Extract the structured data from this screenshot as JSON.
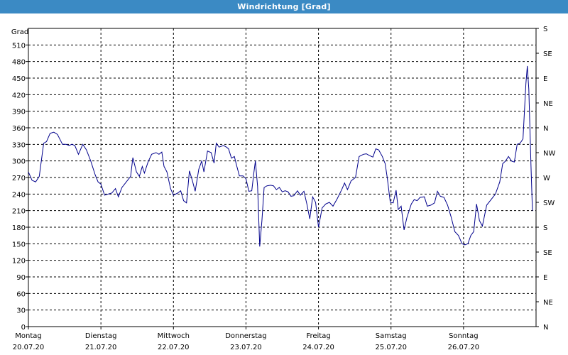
{
  "window": {
    "title": "Windrichtung [Grad]"
  },
  "colors": {
    "titlebar": "#3b8ac4",
    "line": "#00008b",
    "grid": "#000000"
  },
  "chart_data": {
    "type": "line",
    "title": "Windrichtung [Grad]",
    "ylabel": "Grad",
    "ylim": [
      0,
      540
    ],
    "xlim": [
      0,
      7
    ],
    "grid": true,
    "yticks_left": [
      0,
      30,
      60,
      90,
      120,
      150,
      180,
      210,
      240,
      270,
      300,
      330,
      360,
      390,
      420,
      450,
      480,
      510
    ],
    "yticks_right": [
      {
        "value": 0,
        "label": "N"
      },
      {
        "value": 45,
        "label": "NE"
      },
      {
        "value": 90,
        "label": "E"
      },
      {
        "value": 135,
        "label": "SE"
      },
      {
        "value": 180,
        "label": "S"
      },
      {
        "value": 225,
        "label": "SW"
      },
      {
        "value": 270,
        "label": "W"
      },
      {
        "value": 315,
        "label": "NW"
      },
      {
        "value": 360,
        "label": "N"
      },
      {
        "value": 405,
        "label": "NE"
      },
      {
        "value": 450,
        "label": "E"
      },
      {
        "value": 495,
        "label": "SE"
      },
      {
        "value": 540,
        "label": "S"
      }
    ],
    "xticks": [
      {
        "day": "Montag",
        "date": "20.07.20"
      },
      {
        "day": "Dienstag",
        "date": "21.07.20"
      },
      {
        "day": "Mittwoch",
        "date": "22.07.20"
      },
      {
        "day": "Donnerstag",
        "date": "23.07.20"
      },
      {
        "day": "Freitag",
        "date": "24.07.20"
      },
      {
        "day": "Samstag",
        "date": "25.07.20"
      },
      {
        "day": "Sonntag",
        "date": "26.07.20"
      }
    ],
    "series": [
      {
        "color": "#00008b",
        "points": [
          [
            0.0,
            280
          ],
          [
            0.05,
            265
          ],
          [
            0.1,
            262
          ],
          [
            0.15,
            272
          ],
          [
            0.21,
            332
          ],
          [
            0.25,
            335
          ],
          [
            0.3,
            350
          ],
          [
            0.35,
            352
          ],
          [
            0.4,
            348
          ],
          [
            0.47,
            330
          ],
          [
            0.52,
            330
          ],
          [
            0.56,
            328
          ],
          [
            0.6,
            330
          ],
          [
            0.64,
            328
          ],
          [
            0.69,
            312
          ],
          [
            0.75,
            330
          ],
          [
            0.8,
            320
          ],
          [
            0.86,
            300
          ],
          [
            0.92,
            275
          ],
          [
            0.96,
            262
          ],
          [
            1.0,
            258
          ],
          [
            1.05,
            238
          ],
          [
            1.1,
            240
          ],
          [
            1.15,
            242
          ],
          [
            1.2,
            250
          ],
          [
            1.24,
            235
          ],
          [
            1.29,
            252
          ],
          [
            1.35,
            262
          ],
          [
            1.41,
            272
          ],
          [
            1.44,
            306
          ],
          [
            1.49,
            280
          ],
          [
            1.53,
            272
          ],
          [
            1.57,
            290
          ],
          [
            1.6,
            278
          ],
          [
            1.65,
            298
          ],
          [
            1.7,
            312
          ],
          [
            1.76,
            315
          ],
          [
            1.8,
            312
          ],
          [
            1.84,
            316
          ],
          [
            1.87,
            290
          ],
          [
            1.91,
            280
          ],
          [
            1.96,
            250
          ],
          [
            2.0,
            238
          ],
          [
            2.06,
            242
          ],
          [
            2.1,
            246
          ],
          [
            2.14,
            228
          ],
          [
            2.18,
            224
          ],
          [
            2.22,
            282
          ],
          [
            2.26,
            265
          ],
          [
            2.3,
            245
          ],
          [
            2.35,
            285
          ],
          [
            2.39,
            300
          ],
          [
            2.42,
            280
          ],
          [
            2.47,
            318
          ],
          [
            2.52,
            315
          ],
          [
            2.56,
            296
          ],
          [
            2.59,
            332
          ],
          [
            2.63,
            325
          ],
          [
            2.69,
            328
          ],
          [
            2.73,
            325
          ],
          [
            2.76,
            322
          ],
          [
            2.8,
            305
          ],
          [
            2.84,
            308
          ],
          [
            2.87,
            292
          ],
          [
            2.91,
            273
          ],
          [
            2.96,
            273
          ],
          [
            3.0,
            268
          ],
          [
            3.04,
            245
          ],
          [
            3.08,
            246
          ],
          [
            3.11,
            280
          ],
          [
            3.13,
            300
          ],
          [
            3.16,
            254
          ],
          [
            3.19,
            145
          ],
          [
            3.22,
            192
          ],
          [
            3.25,
            252
          ],
          [
            3.29,
            255
          ],
          [
            3.34,
            256
          ],
          [
            3.38,
            255
          ],
          [
            3.42,
            248
          ],
          [
            3.46,
            252
          ],
          [
            3.5,
            244
          ],
          [
            3.54,
            246
          ],
          [
            3.58,
            244
          ],
          [
            3.62,
            236
          ],
          [
            3.66,
            237
          ],
          [
            3.71,
            246
          ],
          [
            3.75,
            238
          ],
          [
            3.8,
            245
          ],
          [
            3.84,
            222
          ],
          [
            3.88,
            195
          ],
          [
            3.92,
            235
          ],
          [
            3.96,
            225
          ],
          [
            4.0,
            180
          ],
          [
            4.05,
            215
          ],
          [
            4.1,
            222
          ],
          [
            4.15,
            225
          ],
          [
            4.2,
            218
          ],
          [
            4.26,
            232
          ],
          [
            4.32,
            248
          ],
          [
            4.36,
            260
          ],
          [
            4.4,
            248
          ],
          [
            4.45,
            264
          ],
          [
            4.51,
            270
          ],
          [
            4.56,
            308
          ],
          [
            4.62,
            312
          ],
          [
            4.66,
            313
          ],
          [
            4.7,
            310
          ],
          [
            4.75,
            307
          ],
          [
            4.79,
            322
          ],
          [
            4.83,
            320
          ],
          [
            4.88,
            308
          ],
          [
            4.92,
            295
          ],
          [
            4.95,
            268
          ],
          [
            4.99,
            225
          ],
          [
            5.03,
            224
          ],
          [
            5.07,
            247
          ],
          [
            5.1,
            212
          ],
          [
            5.14,
            218
          ],
          [
            5.18,
            175
          ],
          [
            5.22,
            198
          ],
          [
            5.28,
            222
          ],
          [
            5.32,
            230
          ],
          [
            5.36,
            228
          ],
          [
            5.4,
            234
          ],
          [
            5.46,
            235
          ],
          [
            5.5,
            218
          ],
          [
            5.55,
            220
          ],
          [
            5.6,
            224
          ],
          [
            5.64,
            245
          ],
          [
            5.68,
            236
          ],
          [
            5.73,
            234
          ],
          [
            5.78,
            220
          ],
          [
            5.83,
            198
          ],
          [
            5.88,
            172
          ],
          [
            5.93,
            165
          ],
          [
            5.98,
            150
          ],
          [
            6.02,
            148
          ],
          [
            6.06,
            150
          ],
          [
            6.1,
            165
          ],
          [
            6.14,
            172
          ],
          [
            6.18,
            222
          ],
          [
            6.22,
            192
          ],
          [
            6.26,
            182
          ],
          [
            6.32,
            220
          ],
          [
            6.38,
            230
          ],
          [
            6.44,
            240
          ],
          [
            6.5,
            262
          ],
          [
            6.54,
            295
          ],
          [
            6.58,
            300
          ],
          [
            6.62,
            308
          ],
          [
            6.66,
            300
          ],
          [
            6.7,
            298
          ],
          [
            6.74,
            330
          ],
          [
            6.78,
            332
          ],
          [
            6.82,
            340
          ],
          [
            6.86,
            440
          ],
          [
            6.88,
            472
          ],
          [
            6.9,
            430
          ],
          [
            6.93,
            290
          ],
          [
            6.95,
            210
          ]
        ]
      }
    ]
  }
}
